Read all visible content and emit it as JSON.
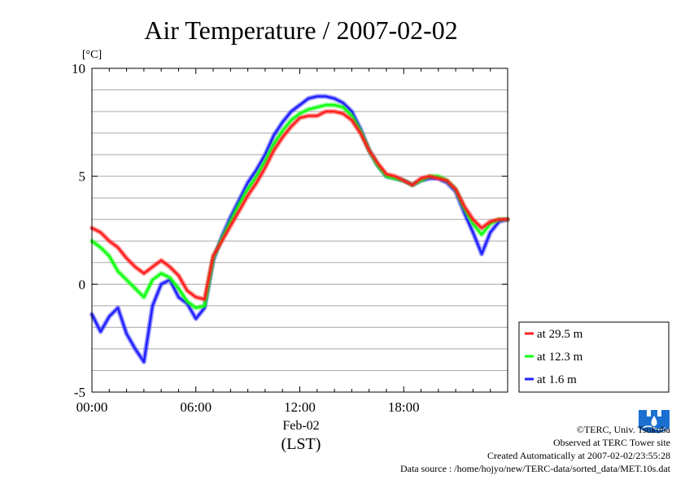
{
  "chart_data": {
    "type": "line",
    "title": "Air Temperature / 2007-02-02",
    "ylabel": "[°C]",
    "xlabel_date": "Feb-02",
    "xlabel_unit": "(LST)",
    "xlim": [
      "00:00",
      "24:00"
    ],
    "ylim": [
      -5,
      10
    ],
    "x_ticks": [
      "00:00",
      "06:00",
      "12:00",
      "18:00"
    ],
    "y_ticks": [
      "10",
      "5",
      "0",
      "-5"
    ],
    "grid": true,
    "legend_placement": "bottom-right, outside plot",
    "x_hours": [
      0,
      0.5,
      1,
      1.5,
      2,
      2.5,
      3,
      3.5,
      4,
      4.5,
      5,
      5.5,
      6,
      6.5,
      7,
      7.5,
      8,
      8.5,
      9,
      9.5,
      10,
      10.5,
      11,
      11.5,
      12,
      12.5,
      13,
      13.5,
      14,
      14.5,
      15,
      15.5,
      16,
      16.5,
      17,
      17.5,
      18,
      18.5,
      19,
      19.5,
      20,
      20.5,
      21,
      21.5,
      22,
      22.5,
      23,
      23.5,
      24
    ],
    "series": [
      {
        "name": "at 29.5 m",
        "color": "#ff2020",
        "values": [
          2.6,
          2.4,
          2.0,
          1.7,
          1.2,
          0.8,
          0.5,
          0.8,
          1.1,
          0.8,
          0.4,
          -0.3,
          -0.6,
          -0.7,
          1.3,
          2.0,
          2.7,
          3.4,
          4.1,
          4.7,
          5.4,
          6.2,
          6.8,
          7.3,
          7.7,
          7.8,
          7.8,
          8.0,
          8.0,
          7.9,
          7.6,
          7.0,
          6.2,
          5.6,
          5.1,
          5.0,
          4.8,
          4.6,
          4.9,
          5.0,
          4.9,
          4.8,
          4.4,
          3.6,
          3.0,
          2.6,
          2.9,
          3.0,
          3.0
        ]
      },
      {
        "name": "at 12.3 m",
        "color": "#10ff10",
        "values": [
          2.0,
          1.7,
          1.3,
          0.6,
          0.2,
          -0.2,
          -0.6,
          0.2,
          0.5,
          0.3,
          -0.2,
          -0.8,
          -1.1,
          -1.0,
          1.2,
          2.1,
          2.9,
          3.7,
          4.4,
          5.0,
          5.7,
          6.5,
          7.1,
          7.6,
          7.9,
          8.1,
          8.2,
          8.3,
          8.3,
          8.2,
          7.8,
          7.1,
          6.2,
          5.5,
          5.0,
          4.9,
          4.8,
          4.6,
          4.8,
          5.0,
          5.0,
          4.8,
          4.4,
          3.5,
          2.8,
          2.3,
          2.8,
          3.0,
          3.0
        ]
      },
      {
        "name": "at 1.6 m",
        "color": "#2020ff",
        "values": [
          -1.4,
          -2.2,
          -1.5,
          -1.1,
          -2.3,
          -3.0,
          -3.6,
          -1.0,
          0.0,
          0.2,
          -0.6,
          -0.9,
          -1.6,
          -1.1,
          1.1,
          2.2,
          3.1,
          3.9,
          4.7,
          5.3,
          6.0,
          6.9,
          7.5,
          8.0,
          8.3,
          8.6,
          8.7,
          8.7,
          8.6,
          8.4,
          8.0,
          7.2,
          6.2,
          5.5,
          5.0,
          4.9,
          4.8,
          4.6,
          4.8,
          4.9,
          4.9,
          4.7,
          4.3,
          3.3,
          2.4,
          1.4,
          2.4,
          2.9,
          3.0
        ]
      }
    ]
  },
  "credits": {
    "copyright": "©TERC, Univ. Tsukuba",
    "observed": "Observed at TERC Tower site",
    "created": "Created Automatically at 2007-02-02/23:55:28",
    "source": "Data source : /home/hojyo/new/TERC-data/sorted_data/MET.10s.dat"
  },
  "logo": {
    "icon": "terc-logo-icon",
    "text": "TERC",
    "color": "#1a6fd1"
  }
}
